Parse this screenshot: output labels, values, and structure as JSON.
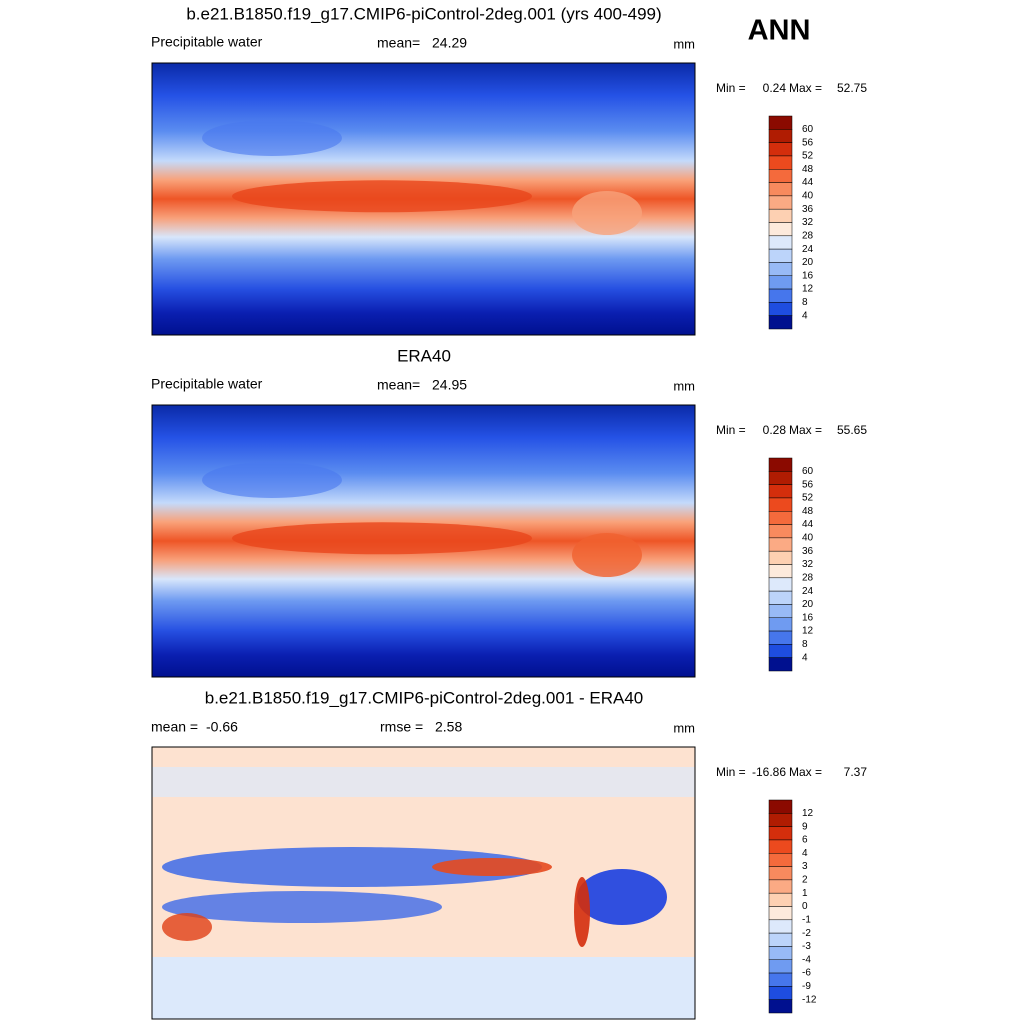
{
  "season": "ANN",
  "panels": [
    {
      "title": "b.e21.B1850.f19_g17.CMIP6-piControl-2deg.001 (yrs 400-499)",
      "field": "Precipitable water",
      "stats": [
        {
          "label": "mean=",
          "value": 24.29
        }
      ],
      "units": "mm",
      "range": {
        "min_label": "Min =",
        "min": 0.24,
        "max_label": "Max =",
        "max": 52.75
      },
      "colorbar": {
        "levels": [
          60,
          56,
          52,
          48,
          44,
          40,
          36,
          32,
          28,
          24,
          20,
          16,
          12,
          8,
          4
        ],
        "colors": [
          "#8b0a00",
          "#b01c02",
          "#d42e0c",
          "#ec4a1e",
          "#f46a3c",
          "#f88a5e",
          "#fbaa84",
          "#fdd0b2",
          "#fdeadc",
          "#dde9fb",
          "#bcd4fa",
          "#98baf6",
          "#6f9bf1",
          "#4676ec",
          "#1e4de0",
          "#00108f"
        ]
      }
    },
    {
      "title": "ERA40",
      "field": "Precipitable water",
      "stats": [
        {
          "label": "mean=",
          "value": 24.95
        }
      ],
      "units": "mm",
      "range": {
        "min_label": "Min =",
        "min": 0.28,
        "max_label": "Max =",
        "max": 55.65
      },
      "colorbar": {
        "levels": [
          60,
          56,
          52,
          48,
          44,
          40,
          36,
          32,
          28,
          24,
          20,
          16,
          12,
          8,
          4
        ],
        "colors": [
          "#8b0a00",
          "#b01c02",
          "#d42e0c",
          "#ec4a1e",
          "#f46a3c",
          "#f88a5e",
          "#fbaa84",
          "#fdd0b2",
          "#fdeadc",
          "#dde9fb",
          "#bcd4fa",
          "#98baf6",
          "#6f9bf1",
          "#4676ec",
          "#1e4de0",
          "#00108f"
        ]
      }
    },
    {
      "title": "b.e21.B1850.f19_g17.CMIP6-piControl-2deg.001 - ERA40",
      "stats": [
        {
          "label": "mean =",
          "value": -0.66
        },
        {
          "label": "rmse =",
          "value": 2.58
        }
      ],
      "units": "mm",
      "range": {
        "min_label": "Min =",
        "min": -16.86,
        "max_label": "Max =",
        "max": 7.37
      },
      "colorbar": {
        "levels": [
          12,
          9,
          6,
          4,
          3,
          2,
          1,
          0,
          -1,
          -2,
          -3,
          -4,
          -6,
          -9,
          -12
        ],
        "colors": [
          "#8b0a00",
          "#b01c02",
          "#d42e0c",
          "#ec4a1e",
          "#f46a3c",
          "#f88a5e",
          "#fbaa84",
          "#fdd0b2",
          "#fdeadc",
          "#dde9fb",
          "#bcd4fa",
          "#98baf6",
          "#6f9bf1",
          "#4676ec",
          "#1e4de0",
          "#00108f"
        ]
      }
    }
  ]
}
